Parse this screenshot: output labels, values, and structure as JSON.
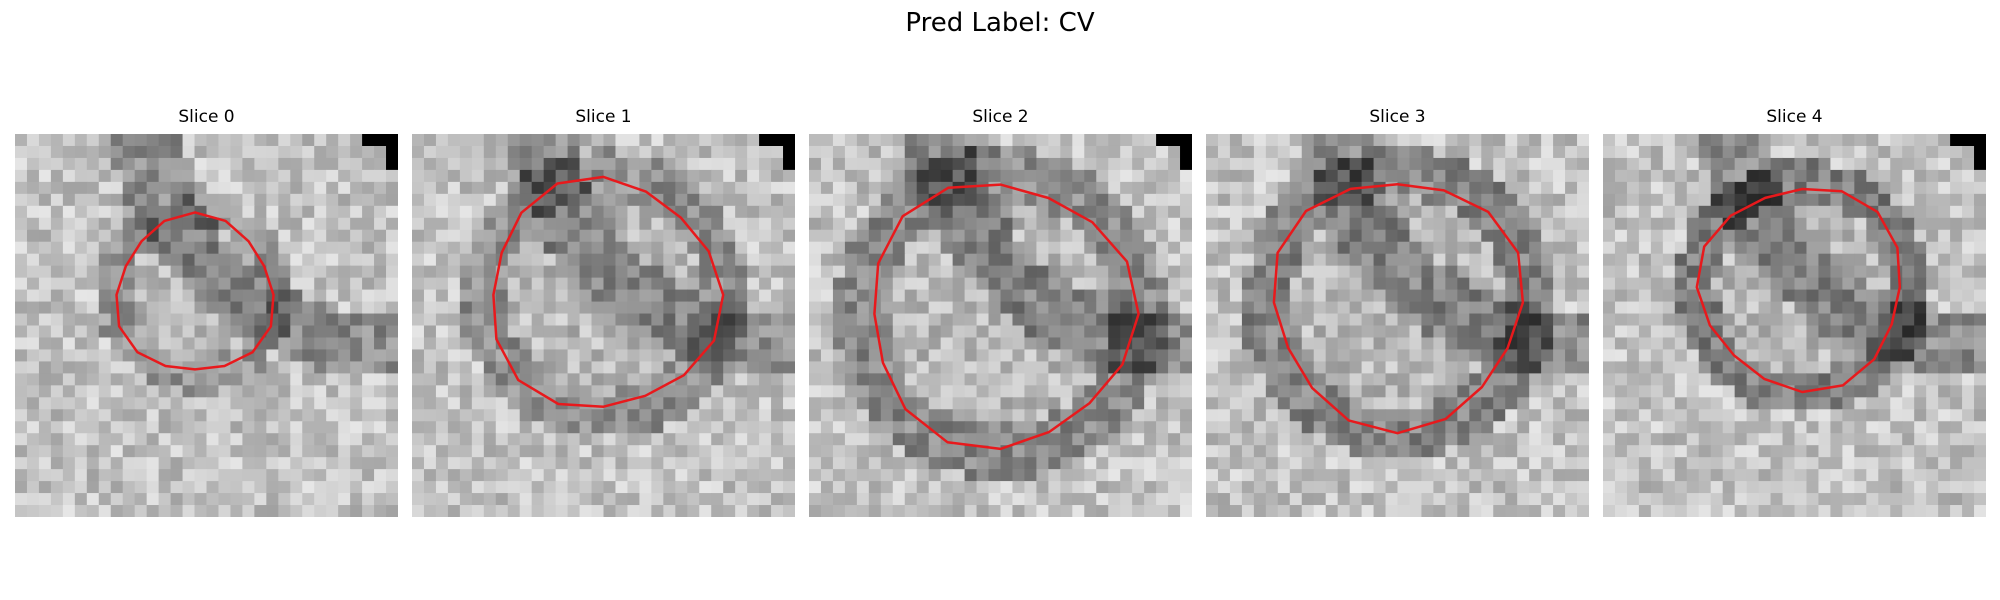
{
  "figure": {
    "title": "Pred Label: CV",
    "contour_color": "#e8191c",
    "slices": [
      {
        "label": "Slice 0",
        "contour_radius": 0.205,
        "contour_center": [
          0.47,
          0.42
        ],
        "corner_marker": true
      },
      {
        "label": "Slice 1",
        "contour_radius": 0.3,
        "contour_center": [
          0.5,
          0.42
        ],
        "corner_marker": true
      },
      {
        "label": "Slice 2",
        "contour_radius": 0.345,
        "contour_center": [
          0.5,
          0.47
        ],
        "corner_marker": true
      },
      {
        "label": "Slice 3",
        "contour_radius": 0.325,
        "contour_center": [
          0.5,
          0.44
        ],
        "corner_marker": false
      },
      {
        "label": "Slice 4",
        "contour_radius": 0.265,
        "contour_center": [
          0.52,
          0.4
        ],
        "corner_marker": true
      }
    ]
  }
}
